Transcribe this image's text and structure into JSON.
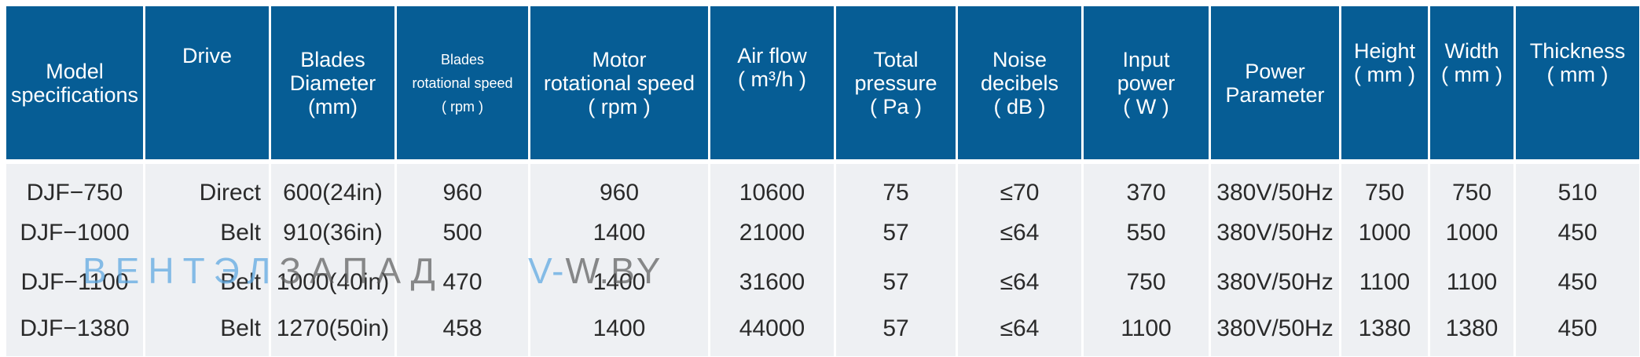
{
  "headers": [
    [
      "Model",
      "specifications"
    ],
    [
      "Drive"
    ],
    [
      "Blades",
      "Diameter",
      "(mm)"
    ],
    [
      "Blades",
      "rotational speed",
      "( rpm )"
    ],
    [
      "Motor",
      "rotational speed",
      "( rpm )"
    ],
    [
      "Air flow",
      "( m³/h )"
    ],
    [
      "Total",
      "pressure",
      "( Pa )"
    ],
    [
      "Noise",
      "decibels",
      "( dB )"
    ],
    [
      "Input",
      "power",
      "( W )"
    ],
    [
      "Power",
      "Parameter"
    ],
    [
      "Height",
      "( mm )"
    ],
    [
      "Width",
      "( mm )"
    ],
    [
      "Thickness",
      "( mm )"
    ]
  ],
  "rows": [
    [
      "DJF−750",
      "Direct",
      "600(24in)",
      "960",
      "960",
      "10600",
      "75",
      "≤70",
      "370",
      "380V/50Hz",
      "750",
      "750",
      "510"
    ],
    [
      "DJF−1000",
      "Belt",
      "910(36in)",
      "500",
      "1400",
      "21000",
      "57",
      "≤64",
      "550",
      "380V/50Hz",
      "1000",
      "1000",
      "450"
    ],
    [
      "DJF−1100",
      "Belt",
      "1000(40in)",
      "470",
      "1400",
      "31600",
      "57",
      "≤64",
      "750",
      "380V/50Hz",
      "1100",
      "1100",
      "450"
    ],
    [
      "DJF−1380",
      "Belt",
      "1270(50in)",
      "458",
      "1400",
      "44000",
      "57",
      "≤64",
      "1100",
      "380V/50Hz",
      "1380",
      "1380",
      "450"
    ]
  ],
  "watermark": {
    "part1": "ВЕНТЭЛ",
    "part2": "ЗАПАД",
    "part3": "V-",
    "part4": "W.BY"
  },
  "colors": {
    "header_bg": "#065d95",
    "header_text": "#ffffff",
    "body_bg": "#eef0f3",
    "body_text": "#2a2a2a"
  }
}
